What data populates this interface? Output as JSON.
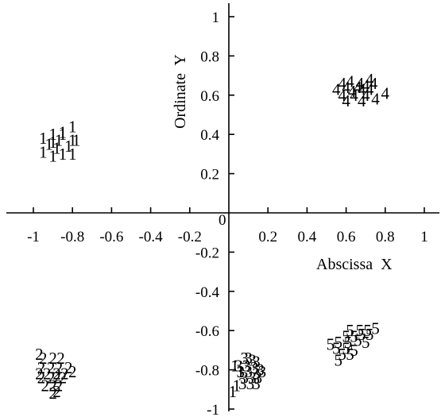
{
  "chart_data": {
    "type": "scatter",
    "title": "",
    "xlabel": "Abscissa  X",
    "ylabel": "Ordinate  Y",
    "origin_label": "0",
    "xlim": [
      -1.05,
      1.05
    ],
    "ylim": [
      -1.0,
      1.0
    ],
    "grid": false,
    "legend": "none",
    "x_ticks": [
      {
        "v": -1,
        "label": "-1"
      },
      {
        "v": -0.8,
        "label": "-0.8"
      },
      {
        "v": -0.6,
        "label": "-0.6"
      },
      {
        "v": -0.4,
        "label": "-0.4"
      },
      {
        "v": -0.2,
        "label": "-0.2"
      },
      {
        "v": 0.2,
        "label": "0.2"
      },
      {
        "v": 0.4,
        "label": "0.4"
      },
      {
        "v": 0.6,
        "label": "0.6"
      },
      {
        "v": 0.8,
        "label": "0.8"
      },
      {
        "v": 1,
        "label": "1"
      }
    ],
    "y_ticks": [
      {
        "v": 1,
        "label": "1"
      },
      {
        "v": 0.8,
        "label": "0.8"
      },
      {
        "v": 0.6,
        "label": "0.6"
      },
      {
        "v": 0.4,
        "label": "0.4"
      },
      {
        "v": 0.2,
        "label": "0.2"
      },
      {
        "v": -0.2,
        "label": "-0.2"
      },
      {
        "v": -0.4,
        "label": "-0.4"
      },
      {
        "v": -0.6,
        "label": "-0.6"
      },
      {
        "v": -0.8,
        "label": "-0.8"
      },
      {
        "v": -1,
        "label": "-1"
      }
    ],
    "series": [
      {
        "label": "1",
        "x": [
          -0.8,
          -0.85,
          -0.95,
          -0.9,
          -0.85,
          -0.8,
          -0.9,
          -0.87,
          -0.78,
          -0.92,
          -0.82,
          -0.88,
          -0.95,
          -0.85,
          -0.9,
          -0.8
        ],
        "y": [
          0.44,
          0.4,
          0.38,
          0.4,
          0.41,
          0.37,
          0.36,
          0.37,
          0.37,
          0.35,
          0.34,
          0.33,
          0.31,
          0.3,
          0.29,
          0.3
        ]
      },
      {
        "label": "2",
        "x": [
          -0.97,
          -0.95,
          -0.9,
          -0.86,
          -0.96,
          -0.91,
          -0.87,
          -0.82,
          -0.97,
          -0.93,
          -0.88,
          -0.84,
          -0.8,
          -0.96,
          -0.91,
          -0.88,
          -0.85,
          -0.94,
          -0.9,
          -0.87,
          -0.9,
          -0.88
        ],
        "y": [
          -0.72,
          -0.74,
          -0.74,
          -0.74,
          -0.79,
          -0.79,
          -0.79,
          -0.79,
          -0.82,
          -0.82,
          -0.82,
          -0.82,
          -0.81,
          -0.84,
          -0.84,
          -0.84,
          -0.84,
          -0.88,
          -0.88,
          -0.88,
          -0.92,
          -0.91
        ]
      },
      {
        "label": "3",
        "x": [
          0.08,
          0.1,
          0.12,
          0.14,
          0.05,
          0.09,
          0.13,
          0.16,
          0.06,
          0.1,
          0.14,
          0.17,
          0.08,
          0.12,
          0.15,
          0.07,
          0.11,
          0.14
        ],
        "y": [
          -0.74,
          -0.74,
          -0.75,
          -0.76,
          -0.78,
          -0.78,
          -0.79,
          -0.8,
          -0.81,
          -0.81,
          -0.82,
          -0.81,
          -0.84,
          -0.84,
          -0.84,
          -0.87,
          -0.87,
          -0.87
        ]
      },
      {
        "label": "1",
        "x": [
          0.03,
          0.06,
          0.04,
          0.02
        ],
        "y": [
          -0.78,
          -0.81,
          -0.88,
          -0.91
        ]
      },
      {
        "label": "4",
        "x": [
          0.58,
          0.62,
          0.67,
          0.72,
          0.55,
          0.6,
          0.66,
          0.7,
          0.74,
          0.63,
          0.68,
          0.72,
          0.8,
          0.58,
          0.64,
          0.7,
          0.6,
          0.68,
          0.75
        ],
        "y": [
          0.66,
          0.67,
          0.66,
          0.68,
          0.63,
          0.64,
          0.64,
          0.65,
          0.66,
          0.62,
          0.63,
          0.63,
          0.61,
          0.6,
          0.6,
          0.6,
          0.57,
          0.57,
          0.58
        ]
      },
      {
        "label": "5",
        "x": [
          0.62,
          0.67,
          0.71,
          0.75,
          0.6,
          0.64,
          0.68,
          0.72,
          0.52,
          0.56,
          0.61,
          0.66,
          0.7,
          0.55,
          0.6,
          0.64,
          0.58,
          0.62,
          0.56
        ],
        "y": [
          -0.6,
          -0.6,
          -0.6,
          -0.59,
          -0.63,
          -0.63,
          -0.62,
          -0.62,
          -0.67,
          -0.66,
          -0.66,
          -0.65,
          -0.66,
          -0.69,
          -0.69,
          -0.7,
          -0.72,
          -0.72,
          -0.75
        ]
      }
    ]
  }
}
